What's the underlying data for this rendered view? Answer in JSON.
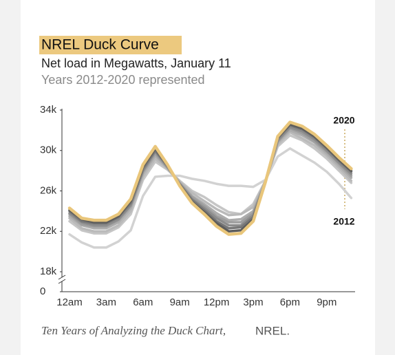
{
  "chart_data": {
    "type": "line",
    "title": "NREL Duck Curve",
    "subtitle": "Net load in Megawatts, January 11",
    "subtitle_2": "Years 2012-2020 represented",
    "source_title": "Ten Years of Analyzing the Duck Chart,",
    "source_org": "NREL.",
    "categories": [
      "12am",
      null,
      null,
      "3am",
      null,
      null,
      "6am",
      null,
      null,
      "9am",
      null,
      null,
      "12pm",
      null,
      null,
      "3pm",
      null,
      null,
      "6pm",
      null,
      null,
      "9pm",
      null,
      null
    ],
    "ylim": [
      0,
      34000
    ],
    "axis_break": [
      0,
      18000
    ],
    "yticks": [
      {
        "value": 0,
        "label": "0"
      },
      {
        "value": 18000,
        "label": "18k"
      },
      {
        "value": 22000,
        "label": "22k"
      },
      {
        "value": 26000,
        "label": "26k"
      },
      {
        "value": 30000,
        "label": "30k"
      },
      {
        "value": 34000,
        "label": "34k"
      }
    ],
    "grid": false,
    "series": [
      {
        "name": "2012",
        "color": "#d2d2d2",
        "values": [
          21700,
          20900,
          20400,
          20400,
          21000,
          22100,
          25500,
          27400,
          27500,
          27500,
          27200,
          27000,
          26700,
          26500,
          26500,
          26400,
          27100,
          29400,
          30200,
          29500,
          28800,
          27900,
          26700,
          25300
        ]
      },
      {
        "color": "#c6c6c6",
        "values": [
          23000,
          22100,
          21800,
          21800,
          22400,
          23700,
          27100,
          28900,
          28100,
          27000,
          26000,
          25400,
          24600,
          23900,
          23700,
          24700,
          27000,
          30400,
          31500,
          31000,
          30200,
          29200,
          28000,
          26800
        ]
      },
      {
        "color": "#bababa",
        "values": [
          23300,
          22300,
          22000,
          22000,
          22600,
          24000,
          27400,
          29200,
          28200,
          26900,
          25800,
          25000,
          24200,
          23600,
          23700,
          24400,
          27000,
          30600,
          31800,
          31200,
          30500,
          29500,
          28300,
          27000
        ]
      },
      {
        "color": "#adadad",
        "values": [
          23500,
          22600,
          22300,
          22300,
          22900,
          24300,
          27700,
          29500,
          28300,
          26800,
          25500,
          24700,
          23800,
          23100,
          23200,
          24000,
          27000,
          30800,
          32000,
          31500,
          30800,
          29700,
          28500,
          27300
        ]
      },
      {
        "color": "#9e9e9e",
        "values": [
          23700,
          22700,
          22500,
          22500,
          23100,
          24500,
          27900,
          29700,
          28300,
          26700,
          25400,
          24500,
          23500,
          22900,
          22900,
          23800,
          26900,
          30900,
          32200,
          31700,
          30900,
          29900,
          28700,
          27500
        ]
      },
      {
        "color": "#8c8c8c",
        "values": [
          23800,
          22900,
          22600,
          22600,
          23200,
          24600,
          28000,
          29900,
          28400,
          26700,
          25200,
          24300,
          23300,
          22600,
          22600,
          23600,
          26900,
          31000,
          32300,
          31900,
          31100,
          30000,
          28800,
          27700
        ]
      },
      {
        "color": "#777777",
        "values": [
          24000,
          23000,
          22800,
          22800,
          23400,
          24800,
          28200,
          30000,
          28500,
          26600,
          25100,
          24100,
          23000,
          22300,
          22400,
          23400,
          26900,
          31200,
          32500,
          32100,
          31300,
          30200,
          29000,
          27900
        ]
      },
      {
        "color": "#5c5c5c",
        "values": [
          24100,
          23200,
          22900,
          22900,
          23500,
          25000,
          28400,
          30200,
          28500,
          26600,
          24900,
          23900,
          22800,
          22000,
          22100,
          23200,
          26900,
          31300,
          32600,
          32200,
          31400,
          30300,
          29100,
          28000
        ]
      },
      {
        "name": "2020",
        "color": "#e9c67b",
        "values": [
          24300,
          23300,
          23100,
          23100,
          23700,
          25200,
          28600,
          30400,
          28600,
          26500,
          24800,
          23700,
          22500,
          21700,
          21800,
          23000,
          26900,
          31400,
          32800,
          32400,
          31600,
          30500,
          29300,
          28200
        ]
      }
    ]
  }
}
